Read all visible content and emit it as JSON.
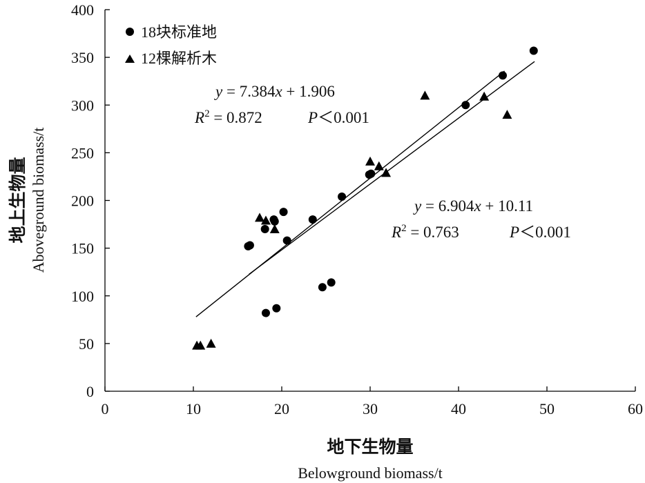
{
  "chart_data": {
    "type": "scatter",
    "xlabel_cn": "地下生物量",
    "xlabel_en": "Belowground biomass/t",
    "ylabel_cn": "地上生物量",
    "ylabel_en": "Aboveground biomass/t",
    "xlim": [
      0,
      60
    ],
    "ylim": [
      0,
      400
    ],
    "xticks": [
      0,
      10,
      20,
      30,
      40,
      50,
      60
    ],
    "yticks": [
      0,
      50,
      100,
      150,
      200,
      250,
      300,
      350,
      400
    ],
    "grid": false,
    "legend_position": "top-left",
    "series": [
      {
        "name": "18块标准地",
        "marker": "circle",
        "color": "#000000",
        "points": [
          {
            "x": 16.2,
            "y": 152
          },
          {
            "x": 16.4,
            "y": 153
          },
          {
            "x": 18.1,
            "y": 170
          },
          {
            "x": 19.1,
            "y": 180
          },
          {
            "x": 19.2,
            "y": 178
          },
          {
            "x": 20.2,
            "y": 188
          },
          {
            "x": 20.6,
            "y": 158
          },
          {
            "x": 23.5,
            "y": 180
          },
          {
            "x": 26.8,
            "y": 204
          },
          {
            "x": 29.9,
            "y": 227
          },
          {
            "x": 30.1,
            "y": 228
          },
          {
            "x": 40.8,
            "y": 300
          },
          {
            "x": 45.0,
            "y": 331
          },
          {
            "x": 48.5,
            "y": 357
          },
          {
            "x": 18.2,
            "y": 82
          },
          {
            "x": 19.4,
            "y": 87
          },
          {
            "x": 24.6,
            "y": 109
          },
          {
            "x": 25.6,
            "y": 114
          }
        ]
      },
      {
        "name": "12棵解析木",
        "marker": "triangle",
        "color": "#000000",
        "points": [
          {
            "x": 10.4,
            "y": 48
          },
          {
            "x": 10.8,
            "y": 48
          },
          {
            "x": 12.0,
            "y": 50
          },
          {
            "x": 17.5,
            "y": 182
          },
          {
            "x": 18.2,
            "y": 179
          },
          {
            "x": 19.2,
            "y": 170
          },
          {
            "x": 30.0,
            "y": 241
          },
          {
            "x": 31.0,
            "y": 236
          },
          {
            "x": 31.8,
            "y": 229
          },
          {
            "x": 36.2,
            "y": 310
          },
          {
            "x": 42.9,
            "y": 309
          },
          {
            "x": 45.5,
            "y": 290
          }
        ]
      }
    ],
    "fit_lines": [
      {
        "slope": 7.384,
        "intercept": 1.906,
        "x_range": [
          10.3,
          45.2
        ]
      },
      {
        "slope": 6.904,
        "intercept": 10.11,
        "x_range": [
          16.3,
          48.6
        ]
      }
    ],
    "annotations": [
      {
        "eq": "y = 7.384x + 1.906",
        "eq_parts": {
          "y": "y",
          "eq_mid": " = 7.384",
          "x": "x",
          "eq_tail": " + 1.906"
        },
        "r2_label": "R",
        "r2_sup": "2",
        "r2_value": " = 0.872",
        "p_label": "P",
        "p_value": "＜0.001"
      },
      {
        "eq": "y = 6.904x + 10.11",
        "eq_parts": {
          "y": "y",
          "eq_mid": " = 6.904",
          "x": "x",
          "eq_tail": " + 10.11"
        },
        "r2_label": "R",
        "r2_sup": "2",
        "r2_value": " = 0.763",
        "p_label": "P",
        "p_value": "＜0.001"
      }
    ]
  }
}
